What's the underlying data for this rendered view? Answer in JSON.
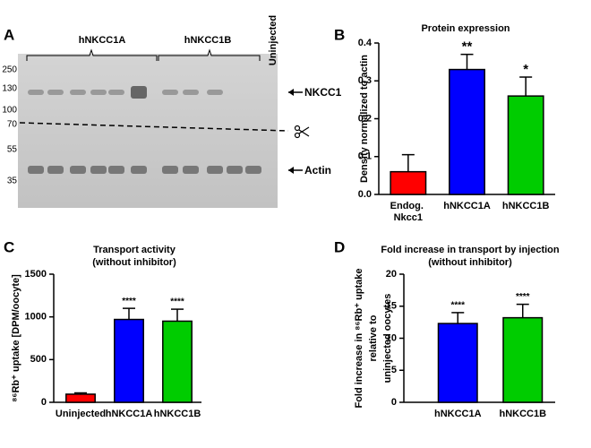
{
  "blot": {
    "panel": "A",
    "groups": [
      "hNKCC1A",
      "hNKCC1B"
    ],
    "lane_label": "Uninjected",
    "markers": [
      "250",
      "130",
      "100",
      "70",
      "55",
      "35"
    ],
    "bands": [
      "NKCC1",
      "Actin"
    ]
  },
  "chart_data": [
    {
      "type": "bar",
      "panel": "B",
      "title": "Protein expression",
      "ylabel": "Density normalized to actin",
      "categories": [
        "Endog. Nkcc1",
        "hNKCC1A",
        "hNKCC1B"
      ],
      "values": [
        0.06,
        0.33,
        0.26
      ],
      "errors": [
        0.045,
        0.04,
        0.05
      ],
      "colors": [
        "#ff0000",
        "#0000ff",
        "#00cc00"
      ],
      "annotations": [
        null,
        "**",
        "*"
      ],
      "ylim": [
        0,
        0.4
      ],
      "yticks": [
        {
          "value": 0,
          "label": "0.0"
        },
        0.1,
        0.2,
        0.3,
        0.4
      ]
    },
    {
      "type": "bar",
      "panel": "C",
      "title": "Transport activity",
      "subtitle": "(without inhibitor)",
      "ylabel": [
        "⁸⁶Rb⁺ uptake [DPM/oocyte]"
      ],
      "categories": [
        "Uninjected",
        "hNKCC1A",
        "hNKCC1B"
      ],
      "values": [
        95,
        970,
        950
      ],
      "errors": [
        15,
        130,
        140
      ],
      "colors": [
        "#ff0000",
        "#0000ff",
        "#00cc00"
      ],
      "annotations": [
        null,
        "****",
        "****"
      ],
      "ylim": [
        0,
        1500
      ],
      "yticks": [
        0,
        500,
        1000,
        1500
      ]
    },
    {
      "type": "bar",
      "panel": "D",
      "title": "Fold increase in transport by injection",
      "subtitle": "(without inhibitor)",
      "ylabel": [
        "Fold increase in ⁸⁶Rb⁺ uptake",
        "relative to",
        "uninjected oocytes"
      ],
      "categories": [
        "hNKCC1A",
        "hNKCC1B"
      ],
      "values": [
        12.3,
        13.2
      ],
      "errors": [
        1.7,
        2.1
      ],
      "colors": [
        "#0000ff",
        "#00cc00"
      ],
      "annotations": [
        "****",
        "****"
      ],
      "ylim": [
        0,
        20
      ],
      "yticks": [
        0,
        5,
        10,
        15,
        20
      ]
    }
  ]
}
